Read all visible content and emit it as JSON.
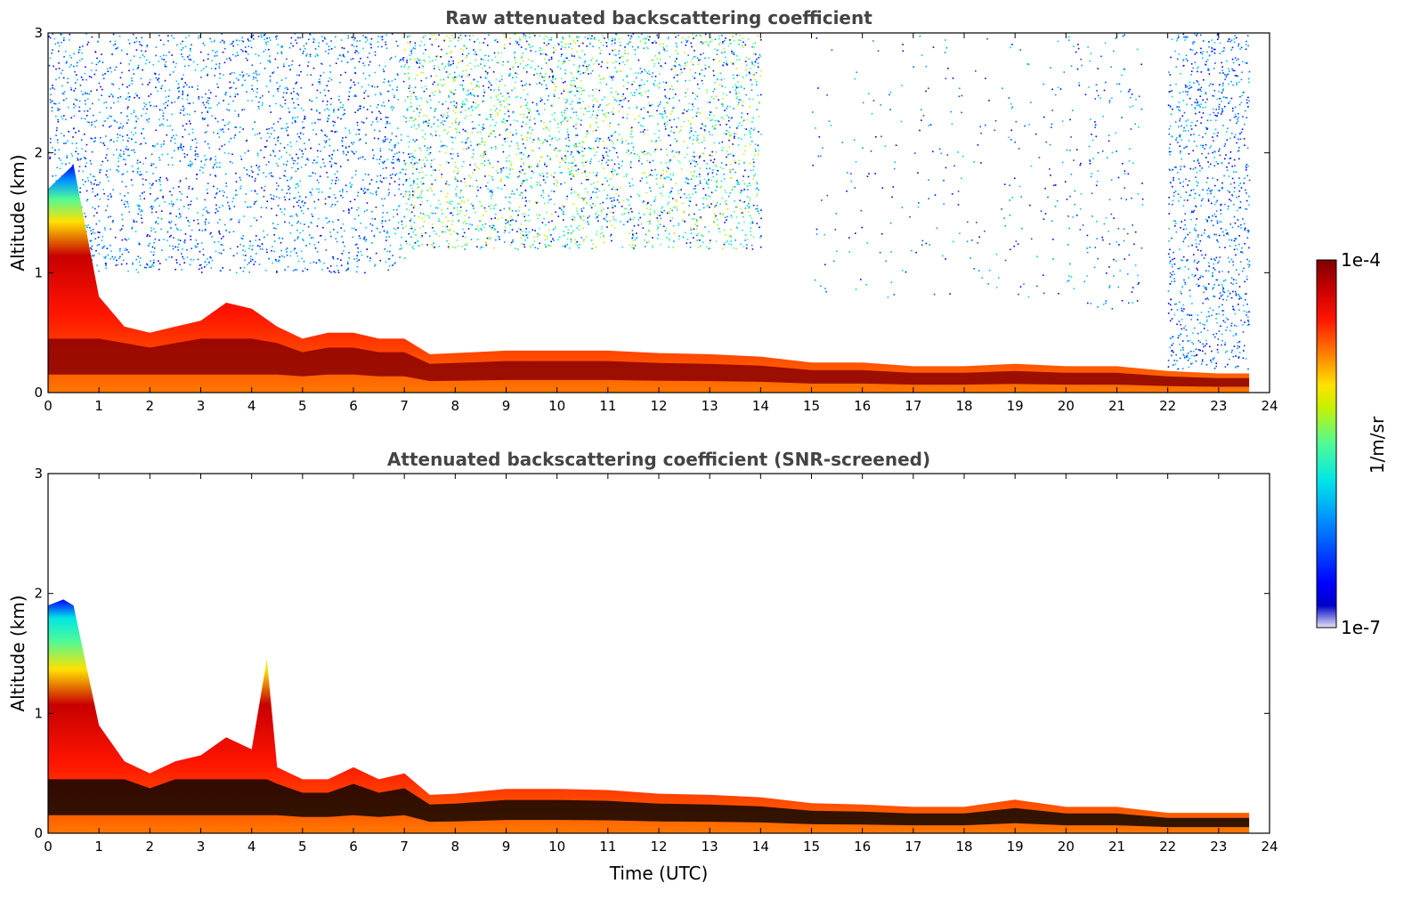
{
  "chart_data": [
    {
      "type": "heatmap",
      "title": "Raw attenuated backscattering coefficient",
      "xlabel": "",
      "ylabel": "Altitude (km)",
      "xlim": [
        0,
        24
      ],
      "ylim": [
        0,
        3
      ],
      "xticks": [
        "0",
        "1",
        "2",
        "3",
        "4",
        "5",
        "6",
        "7",
        "8",
        "9",
        "10",
        "11",
        "12",
        "13",
        "14",
        "15",
        "16",
        "17",
        "18",
        "19",
        "20",
        "21",
        "22",
        "23",
        "24"
      ],
      "yticks": [
        "0",
        "1",
        "2",
        "3"
      ],
      "boundary_layer_top_km": [
        [
          0,
          1.7
        ],
        [
          0.5,
          1.9
        ],
        [
          1,
          0.8
        ],
        [
          1.5,
          0.55
        ],
        [
          2,
          0.5
        ],
        [
          2.5,
          0.55
        ],
        [
          3,
          0.6
        ],
        [
          3.5,
          0.75
        ],
        [
          4,
          0.7
        ],
        [
          4.5,
          0.55
        ],
        [
          5,
          0.45
        ],
        [
          5.5,
          0.5
        ],
        [
          6,
          0.5
        ],
        [
          6.5,
          0.45
        ],
        [
          7,
          0.45
        ],
        [
          7.5,
          0.32
        ],
        [
          8,
          0.33
        ],
        [
          9,
          0.35
        ],
        [
          10,
          0.35
        ],
        [
          11,
          0.35
        ],
        [
          12,
          0.33
        ],
        [
          13,
          0.32
        ],
        [
          14,
          0.3
        ],
        [
          15,
          0.25
        ],
        [
          16,
          0.25
        ],
        [
          17,
          0.22
        ],
        [
          18,
          0.22
        ],
        [
          19,
          0.24
        ],
        [
          20,
          0.22
        ],
        [
          21,
          0.22
        ],
        [
          22,
          0.18
        ],
        [
          23,
          0.16
        ],
        [
          23.6,
          0.16
        ]
      ],
      "noise_regions": [
        {
          "x": [
            0,
            7
          ],
          "y": [
            1,
            3
          ],
          "density": 0.4,
          "level": "low"
        },
        {
          "x": [
            7,
            14
          ],
          "y": [
            1.2,
            3
          ],
          "density": 0.55,
          "level": "mid"
        },
        {
          "x": [
            15,
            20
          ],
          "y": [
            0.8,
            3
          ],
          "density": 0.05,
          "level": "low"
        },
        {
          "x": [
            20,
            21.5
          ],
          "y": [
            0.7,
            3
          ],
          "density": 0.12,
          "level": "low"
        },
        {
          "x": [
            22,
            23.6
          ],
          "y": [
            0.2,
            3
          ],
          "density": 0.5,
          "level": "low"
        }
      ]
    },
    {
      "type": "heatmap",
      "title": "Attenuated backscattering coefficient (SNR-screened)",
      "xlabel": "Time (UTC)",
      "ylabel": "Altitude (km)",
      "xlim": [
        0,
        24
      ],
      "ylim": [
        0,
        3
      ],
      "xticks": [
        "0",
        "1",
        "2",
        "3",
        "4",
        "5",
        "6",
        "7",
        "8",
        "9",
        "10",
        "11",
        "12",
        "13",
        "14",
        "15",
        "16",
        "17",
        "18",
        "19",
        "20",
        "21",
        "22",
        "23",
        "24"
      ],
      "yticks": [
        "0",
        "1",
        "2",
        "3"
      ],
      "boundary_layer_top_km": [
        [
          0,
          1.9
        ],
        [
          0.3,
          1.95
        ],
        [
          0.5,
          1.9
        ],
        [
          0.8,
          1.3
        ],
        [
          1,
          0.9
        ],
        [
          1.5,
          0.6
        ],
        [
          2,
          0.5
        ],
        [
          2.5,
          0.6
        ],
        [
          3,
          0.65
        ],
        [
          3.5,
          0.8
        ],
        [
          4,
          0.7
        ],
        [
          4.3,
          1.45
        ],
        [
          4.5,
          0.55
        ],
        [
          5,
          0.45
        ],
        [
          5.5,
          0.45
        ],
        [
          6,
          0.55
        ],
        [
          6.5,
          0.45
        ],
        [
          7,
          0.5
        ],
        [
          7.5,
          0.32
        ],
        [
          8,
          0.33
        ],
        [
          9,
          0.37
        ],
        [
          10,
          0.37
        ],
        [
          11,
          0.36
        ],
        [
          12,
          0.33
        ],
        [
          13,
          0.32
        ],
        [
          14,
          0.3
        ],
        [
          15,
          0.25
        ],
        [
          16,
          0.24
        ],
        [
          17,
          0.22
        ],
        [
          18,
          0.22
        ],
        [
          19,
          0.28
        ],
        [
          20,
          0.22
        ],
        [
          21,
          0.22
        ],
        [
          22,
          0.17
        ],
        [
          23,
          0.17
        ],
        [
          23.6,
          0.17
        ]
      ]
    }
  ],
  "colorbar": {
    "label": "1/m/sr",
    "max_label": "1e-4",
    "min_label": "1e-7",
    "colormap": "jet",
    "colors": [
      "#e6e6f7",
      "#0000c8",
      "#0000ff",
      "#0096ff",
      "#00e6e6",
      "#50fa96",
      "#c8f000",
      "#ffe100",
      "#ff7800",
      "#ff1400",
      "#c80000",
      "#800000"
    ]
  }
}
